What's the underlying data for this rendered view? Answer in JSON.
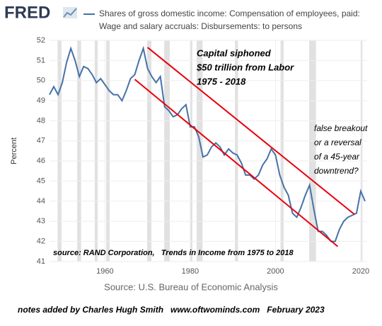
{
  "chart_data": {
    "type": "line",
    "logo": "FRED",
    "y_label": "Percent",
    "source": "Source: U.S. Bureau of Economic Analysis",
    "notes": "notes added by Charles Hugh Smith   www.oftwominds.com   February 2023",
    "annotation_capital": [
      "Capital siphoned",
      "$50 trillion from Labor",
      "1975 - 2018"
    ],
    "annotation_breakout": [
      "false breakout",
      "or a reversal",
      "of a 45-year",
      "downtrend?"
    ],
    "annotation_source": "source: RAND Corporation,   Trends in Income from 1975 to 2018",
    "x": [
      1947,
      1948,
      1949,
      1950,
      1951,
      1952,
      1953,
      1954,
      1955,
      1956,
      1957,
      1958,
      1959,
      1960,
      1961,
      1962,
      1963,
      1964,
      1965,
      1966,
      1967,
      1968,
      1969,
      1970,
      1971,
      1972,
      1973,
      1974,
      1975,
      1976,
      1977,
      1978,
      1979,
      1980,
      1981,
      1982,
      1983,
      1984,
      1985,
      1986,
      1987,
      1988,
      1989,
      1990,
      1991,
      1992,
      1993,
      1994,
      1995,
      1996,
      1997,
      1998,
      1999,
      2000,
      2001,
      2002,
      2003,
      2004,
      2005,
      2006,
      2007,
      2008,
      2009,
      2010,
      2011,
      2012,
      2013,
      2014,
      2015,
      2016,
      2017,
      2018,
      2019,
      2020,
      2021
    ],
    "series": [
      {
        "name": "Shares of gross domestic income: Compensation of employees, paid: Wage and salary accruals: Disbursements: to persons",
        "color": "#4572a7",
        "values": [
          49.3,
          49.7,
          49.3,
          49.9,
          50.9,
          51.6,
          51.0,
          50.2,
          50.7,
          50.6,
          50.3,
          49.9,
          50.1,
          49.8,
          49.5,
          49.3,
          49.3,
          49.0,
          49.5,
          50.1,
          50.3,
          51.0,
          51.6,
          50.6,
          50.2,
          49.9,
          50.2,
          48.7,
          48.5,
          48.2,
          48.3,
          48.6,
          48.8,
          47.7,
          47.7,
          47.2,
          46.2,
          46.3,
          46.7,
          46.9,
          46.7,
          46.3,
          46.6,
          46.4,
          46.3,
          45.9,
          45.3,
          45.3,
          45.1,
          45.3,
          45.8,
          46.1,
          46.6,
          46.3,
          45.3,
          44.7,
          44.3,
          43.4,
          43.2,
          43.7,
          44.3,
          44.8,
          43.6,
          42.5,
          42.5,
          42.3,
          42.0,
          42.0,
          42.6,
          43.0,
          43.2,
          43.3,
          43.4,
          44.5,
          44.0
        ]
      }
    ],
    "trend_lines": [
      {
        "color": "#e8000b",
        "x": [
          1970,
          2018.5
        ],
        "y": [
          51.65,
          43.35
        ]
      },
      {
        "color": "#e8000b",
        "x": [
          1967,
          2014.6
        ],
        "y": [
          50.06,
          41.75
        ]
      }
    ],
    "recessions": [
      [
        1948.9,
        1949.8
      ],
      [
        1953.5,
        1954.4
      ],
      [
        1957.6,
        1958.3
      ],
      [
        1960.3,
        1961.1
      ],
      [
        1969.9,
        1970.9
      ],
      [
        1973.9,
        1975.2
      ],
      [
        1980.0,
        1980.5
      ],
      [
        1981.5,
        1982.9
      ],
      [
        1990.5,
        1991.2
      ],
      [
        2001.2,
        2001.9
      ],
      [
        2007.9,
        2009.5
      ],
      [
        2020.1,
        2020.4
      ]
    ],
    "recession_color": "#e1e1e1",
    "xlim": [
      1947,
      2021.5
    ],
    "ylim": [
      41,
      52
    ],
    "xticks": [
      1960,
      1980,
      2000,
      2020
    ],
    "yticks": [
      41,
      42,
      43,
      44,
      45,
      46,
      47,
      48,
      49,
      50,
      51,
      52
    ],
    "grid": true
  }
}
